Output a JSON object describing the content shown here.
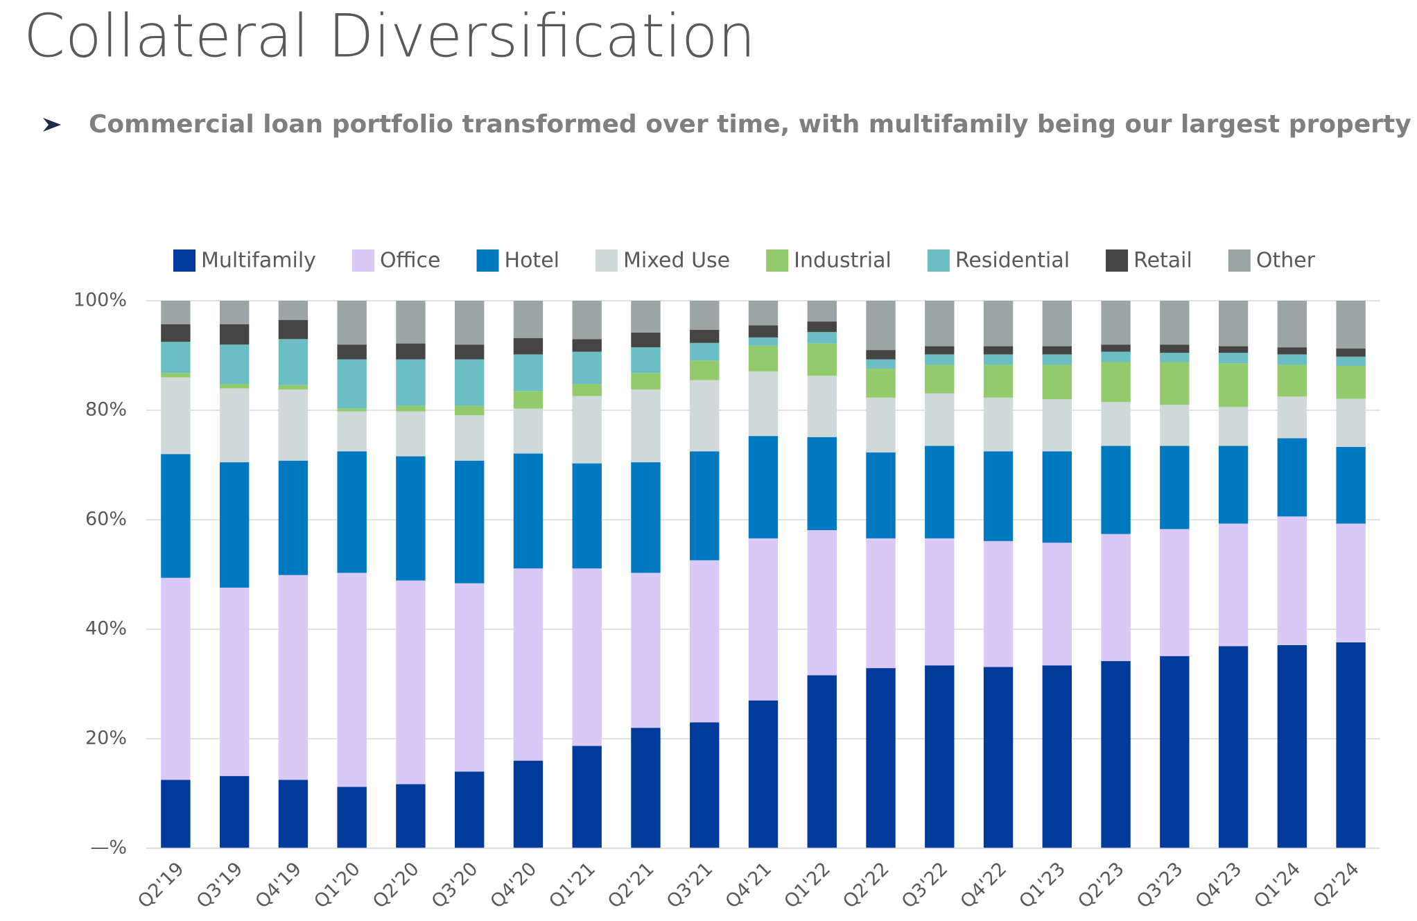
{
  "chart_data": {
    "type": "stacked_bar",
    "title": "Collateral Diversification",
    "subtitle": "Commercial loan portfolio transformed over time, with multifamily being our largest property type",
    "categories": [
      "Q2'19",
      "Q3'19",
      "Q4'19",
      "Q1'20",
      "Q2'20",
      "Q3'20",
      "Q4'20",
      "Q1'21",
      "Q2'21",
      "Q3'21",
      "Q4'21",
      "Q1'22",
      "Q2'22",
      "Q3'22",
      "Q4'22",
      "Q1'23",
      "Q2'23",
      "Q3'23",
      "Q4'23",
      "Q1'24",
      "Q2'24"
    ],
    "series": [
      {
        "name": "Multifamily",
        "color": "#003b9b",
        "values": [
          12.5,
          13.2,
          12.5,
          11.2,
          11.7,
          14.0,
          16.0,
          18.7,
          22.0,
          23.0,
          27.0,
          31.6,
          32.9,
          33.4,
          33.1,
          33.4,
          34.2,
          35.1,
          36.9,
          37.1,
          37.6
        ]
      },
      {
        "name": "Office",
        "color": "#d9c9f6",
        "values": [
          36.9,
          34.4,
          37.4,
          39.1,
          37.2,
          34.4,
          35.1,
          32.4,
          28.3,
          29.6,
          29.6,
          26.5,
          23.7,
          23.2,
          23.0,
          22.4,
          23.2,
          23.2,
          22.4,
          23.5,
          21.7
        ]
      },
      {
        "name": "Hotel",
        "color": "#0079c1",
        "values": [
          22.6,
          22.9,
          20.9,
          22.2,
          22.7,
          22.4,
          21.0,
          19.2,
          20.2,
          19.9,
          18.7,
          17.0,
          15.7,
          16.9,
          16.4,
          16.7,
          16.1,
          15.2,
          14.2,
          14.3,
          14.0
        ]
      },
      {
        "name": "Mixed Use",
        "color": "#cfd9d9",
        "values": [
          14.0,
          13.5,
          13.0,
          7.3,
          8.2,
          8.3,
          8.2,
          12.3,
          13.3,
          13.0,
          11.8,
          11.2,
          10.0,
          9.6,
          9.8,
          9.5,
          8.0,
          7.5,
          7.1,
          7.6,
          8.8
        ]
      },
      {
        "name": "Industrial",
        "color": "#93cb6c",
        "values": [
          0.8,
          0.8,
          0.8,
          0.5,
          1.0,
          1.7,
          3.2,
          2.2,
          3.0,
          3.6,
          4.7,
          5.9,
          5.3,
          5.2,
          6.0,
          6.3,
          7.3,
          7.8,
          8.0,
          5.8,
          6.0
        ]
      },
      {
        "name": "Residential",
        "color": "#6bbfc4",
        "values": [
          5.7,
          7.2,
          8.4,
          9.0,
          8.5,
          8.5,
          6.7,
          5.9,
          4.7,
          3.2,
          1.5,
          2.1,
          1.7,
          1.9,
          1.9,
          1.9,
          1.9,
          1.7,
          1.9,
          1.9,
          1.7
        ]
      },
      {
        "name": "Retail",
        "color": "#454545",
        "values": [
          3.2,
          3.7,
          3.5,
          2.7,
          2.9,
          2.7,
          3.0,
          2.3,
          2.7,
          2.4,
          2.2,
          1.9,
          1.7,
          1.5,
          1.5,
          1.5,
          1.3,
          1.5,
          1.2,
          1.3,
          1.5
        ]
      },
      {
        "name": "Other",
        "color": "#9ba5a5",
        "values": [
          4.3,
          4.3,
          3.5,
          8.0,
          7.8,
          8.0,
          6.8,
          7.0,
          5.8,
          5.3,
          4.5,
          3.8,
          9.0,
          8.3,
          8.3,
          8.3,
          8.0,
          8.0,
          8.3,
          8.5,
          8.7
        ]
      }
    ],
    "ylim": [
      0,
      100
    ],
    "yticks": [
      {
        "value": 0,
        "label": "—%"
      },
      {
        "value": 20,
        "label": "20%"
      },
      {
        "value": 40,
        "label": "40%"
      },
      {
        "value": 60,
        "label": "60%"
      },
      {
        "value": 80,
        "label": "80%"
      },
      {
        "value": 100,
        "label": "100%"
      }
    ],
    "grid": true,
    "legend": "top"
  }
}
